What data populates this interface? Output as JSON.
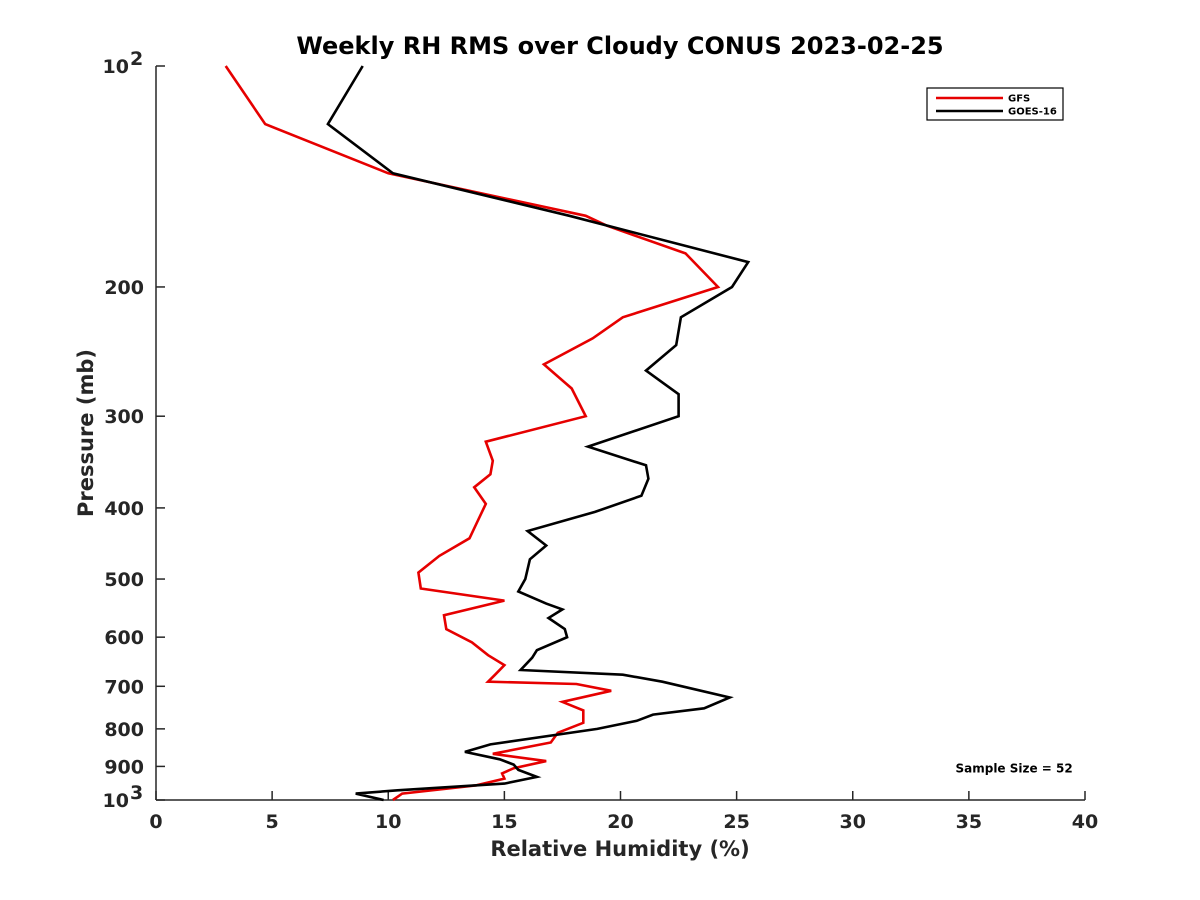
{
  "chart_data": {
    "type": "line",
    "title": "Weekly RH RMS over Cloudy CONUS 2023-02-25",
    "xlabel": "Relative Humidity (%)",
    "ylabel": "Pressure (mb)",
    "xlim": [
      0,
      40
    ],
    "ylim": [
      100,
      1000
    ],
    "y_scale": "log",
    "y_reversed": true,
    "grid": false,
    "legend_position": "top-right",
    "x_ticks": [
      {
        "value": 0,
        "label": "0"
      },
      {
        "value": 5,
        "label": "5"
      },
      {
        "value": 10,
        "label": "10"
      },
      {
        "value": 15,
        "label": "15"
      },
      {
        "value": 20,
        "label": "20"
      },
      {
        "value": 25,
        "label": "25"
      },
      {
        "value": 30,
        "label": "30"
      },
      {
        "value": 35,
        "label": "35"
      },
      {
        "value": 40,
        "label": "40"
      }
    ],
    "y_ticks": [
      {
        "value": 100,
        "label": "10",
        "sup": "2"
      },
      {
        "value": 200,
        "label": "200"
      },
      {
        "value": 300,
        "label": "300"
      },
      {
        "value": 400,
        "label": "400"
      },
      {
        "value": 500,
        "label": "500"
      },
      {
        "value": 600,
        "label": "600"
      },
      {
        "value": 700,
        "label": "700"
      },
      {
        "value": 800,
        "label": "800"
      },
      {
        "value": 900,
        "label": "900"
      },
      {
        "value": 1000,
        "label": "10",
        "sup": "3"
      }
    ],
    "series": [
      {
        "name": "GFS",
        "color": "#e60000",
        "points": [
          [
            3.0,
            100
          ],
          [
            4.7,
            120
          ],
          [
            10.0,
            140
          ],
          [
            18.5,
            160
          ],
          [
            19.4,
            165
          ],
          [
            22.8,
            180
          ],
          [
            24.2,
            200
          ],
          [
            20.1,
            220
          ],
          [
            18.8,
            235
          ],
          [
            16.7,
            255
          ],
          [
            17.9,
            275
          ],
          [
            18.5,
            300
          ],
          [
            14.2,
            325
          ],
          [
            14.5,
            345
          ],
          [
            14.4,
            360
          ],
          [
            13.7,
            375
          ],
          [
            14.2,
            395
          ],
          [
            13.8,
            420
          ],
          [
            13.5,
            440
          ],
          [
            12.2,
            465
          ],
          [
            11.3,
            490
          ],
          [
            11.4,
            515
          ],
          [
            15.0,
            535
          ],
          [
            12.4,
            560
          ],
          [
            12.5,
            585
          ],
          [
            13.6,
            610
          ],
          [
            14.3,
            635
          ],
          [
            15.0,
            655
          ],
          [
            14.6,
            675
          ],
          [
            14.3,
            690
          ],
          [
            18.1,
            695
          ],
          [
            19.6,
            710
          ],
          [
            17.5,
            735
          ],
          [
            18.4,
            755
          ],
          [
            18.4,
            785
          ],
          [
            17.3,
            810
          ],
          [
            17.0,
            835
          ],
          [
            14.5,
            865
          ],
          [
            16.8,
            885
          ],
          [
            15.4,
            905
          ],
          [
            14.9,
            920
          ],
          [
            15.0,
            935
          ],
          [
            13.8,
            955
          ],
          [
            10.6,
            980
          ],
          [
            10.2,
            1000
          ]
        ]
      },
      {
        "name": "GOES-16",
        "color": "#000000",
        "points": [
          [
            8.9,
            100
          ],
          [
            7.4,
            120
          ],
          [
            10.2,
            140
          ],
          [
            17.8,
            160
          ],
          [
            25.5,
            185
          ],
          [
            24.8,
            200
          ],
          [
            22.6,
            220
          ],
          [
            22.4,
            240
          ],
          [
            21.1,
            260
          ],
          [
            22.5,
            280
          ],
          [
            22.5,
            300
          ],
          [
            18.6,
            330
          ],
          [
            21.1,
            350
          ],
          [
            21.2,
            365
          ],
          [
            20.9,
            385
          ],
          [
            18.9,
            405
          ],
          [
            16.0,
            430
          ],
          [
            16.8,
            450
          ],
          [
            16.1,
            470
          ],
          [
            15.9,
            500
          ],
          [
            15.6,
            520
          ],
          [
            16.8,
            540
          ],
          [
            17.5,
            550
          ],
          [
            16.9,
            565
          ],
          [
            17.6,
            585
          ],
          [
            17.7,
            600
          ],
          [
            16.4,
            625
          ],
          [
            16.2,
            640
          ],
          [
            15.7,
            665
          ],
          [
            20.1,
            675
          ],
          [
            21.8,
            690
          ],
          [
            24.7,
            725
          ],
          [
            23.6,
            750
          ],
          [
            21.4,
            765
          ],
          [
            20.7,
            780
          ],
          [
            19.0,
            800
          ],
          [
            14.4,
            840
          ],
          [
            13.3,
            860
          ],
          [
            14.8,
            880
          ],
          [
            15.4,
            895
          ],
          [
            15.6,
            910
          ],
          [
            16.4,
            930
          ],
          [
            15.0,
            950
          ],
          [
            10.4,
            970
          ],
          [
            8.6,
            980
          ],
          [
            9.8,
            1000
          ]
        ]
      }
    ],
    "annotations": [
      {
        "text": "Sample Size = 52",
        "x": 35.5,
        "y": 900
      }
    ]
  }
}
